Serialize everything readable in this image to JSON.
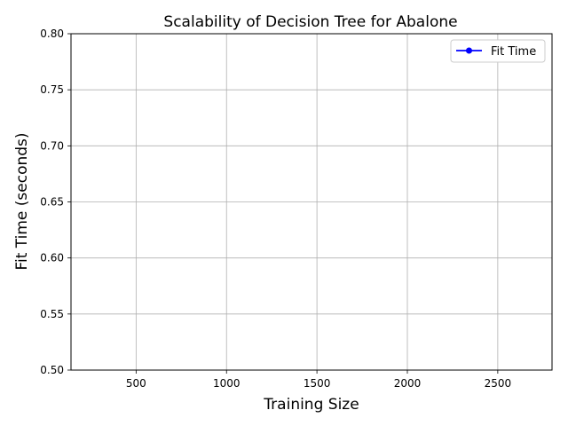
{
  "chart_data": {
    "type": "line",
    "title": "Scalability of Decision Tree for Abalone",
    "xlabel": "Training Size",
    "ylabel": "Fit Time (seconds)",
    "xlim": [
      140,
      2800
    ],
    "ylim": [
      0.5,
      0.8
    ],
    "xticks": [
      500,
      1000,
      1500,
      2000,
      2500
    ],
    "yticks": [
      0.5,
      0.55,
      0.6,
      0.65,
      0.7,
      0.75,
      0.8
    ],
    "xtick_labels": [
      "500",
      "1000",
      "1500",
      "2000",
      "2500"
    ],
    "ytick_labels": [
      "0.50",
      "0.55",
      "0.60",
      "0.65",
      "0.70",
      "0.75",
      "0.80"
    ],
    "grid": true,
    "legend_position": "top-right",
    "series": [
      {
        "name": "Fit Time",
        "color": "#0000ff",
        "marker": "circle",
        "x": [],
        "y": []
      }
    ]
  }
}
